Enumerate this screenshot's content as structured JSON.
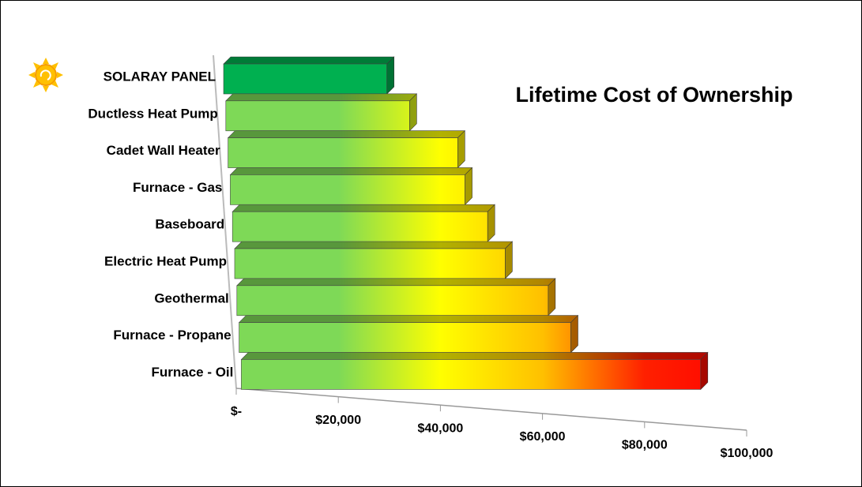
{
  "chart_data": {
    "type": "bar3d",
    "orientation": "horizontal",
    "title": "Lifetime Cost of Ownership",
    "categories": [
      "SOLARAY PANEL",
      "Ductless Heat Pump",
      "Cadet Wall Heater",
      "Furnace - Gas",
      "Baseboard",
      "Electric Heat Pump",
      "Geothermal",
      "Furnace - Propane",
      "Furnace - Oil"
    ],
    "values": [
      32000,
      36000,
      45000,
      46000,
      50000,
      53000,
      61000,
      65000,
      90000
    ],
    "colors": [
      "#00b050",
      "gradient",
      "gradient",
      "gradient",
      "gradient",
      "gradient",
      "gradient",
      "gradient",
      "gradient"
    ],
    "gradient": [
      "#7ed957",
      "#7ed957",
      "#ffff00",
      "#ffc000",
      "#ff2000",
      "#ff0000"
    ],
    "xlim": [
      0,
      100000
    ],
    "xticks": [
      {
        "value": 0,
        "label": "$-"
      },
      {
        "value": 20000,
        "label": "$20,000"
      },
      {
        "value": 40000,
        "label": "$40,000"
      },
      {
        "value": 60000,
        "label": "$60,000"
      },
      {
        "value": 80000,
        "label": "$80,000"
      },
      {
        "value": 100000,
        "label": "$100,000"
      }
    ]
  }
}
